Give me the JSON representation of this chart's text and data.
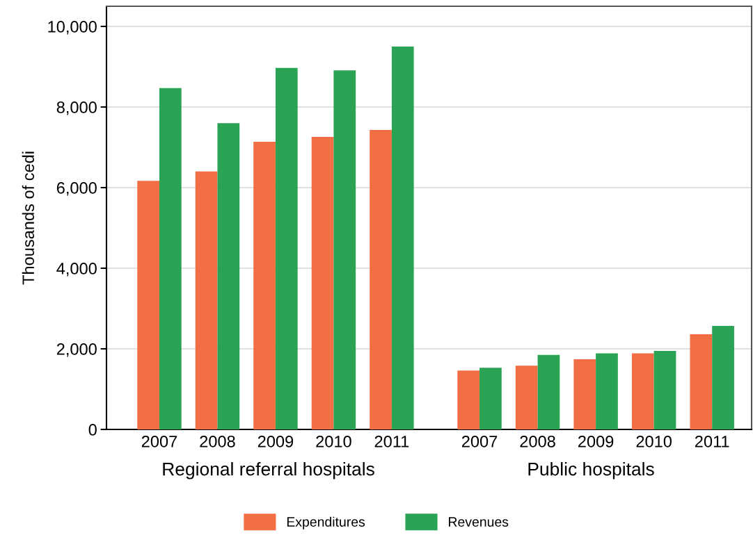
{
  "chart_data": [
    {
      "type": "bar",
      "categories": [
        "2007",
        "2008",
        "2009",
        "2010",
        "2011"
      ],
      "xlabel": "Regional referral hospitals",
      "ylabel": "Thousands of cedi",
      "ylim": [
        0,
        10500
      ],
      "yticks": [
        {
          "value": 0,
          "label": "0"
        },
        {
          "value": 2000,
          "label": "2,000"
        },
        {
          "value": 4000,
          "label": "4,000"
        },
        {
          "value": 6000,
          "label": "6,000"
        },
        {
          "value": 8000,
          "label": "8,000"
        },
        {
          "value": 10000,
          "label": "10,000"
        }
      ],
      "grid": "y",
      "legend": "bottom",
      "series": [
        {
          "name": "Expenditures",
          "color": "#f26f45",
          "values": [
            6170,
            6400,
            7140,
            7260,
            7430
          ]
        },
        {
          "name": "Revenues",
          "color": "#2ba355",
          "values": [
            8470,
            7600,
            8970,
            8910,
            9500
          ]
        }
      ]
    },
    {
      "type": "bar",
      "categories": [
        "2007",
        "2008",
        "2009",
        "2010",
        "2011"
      ],
      "xlabel": "Public hospitals",
      "ylim": [
        0,
        10500
      ],
      "yticks": [
        0,
        2000,
        4000,
        6000,
        8000,
        10000
      ],
      "grid": "y",
      "tick_labels": "x",
      "series": [
        {
          "color": "#f26f45",
          "values": [
            1460,
            1580,
            1740,
            1890,
            2360
          ]
        },
        {
          "color": "#2ba355",
          "values": [
            1530,
            1850,
            1890,
            1950,
            2570
          ]
        }
      ]
    }
  ]
}
